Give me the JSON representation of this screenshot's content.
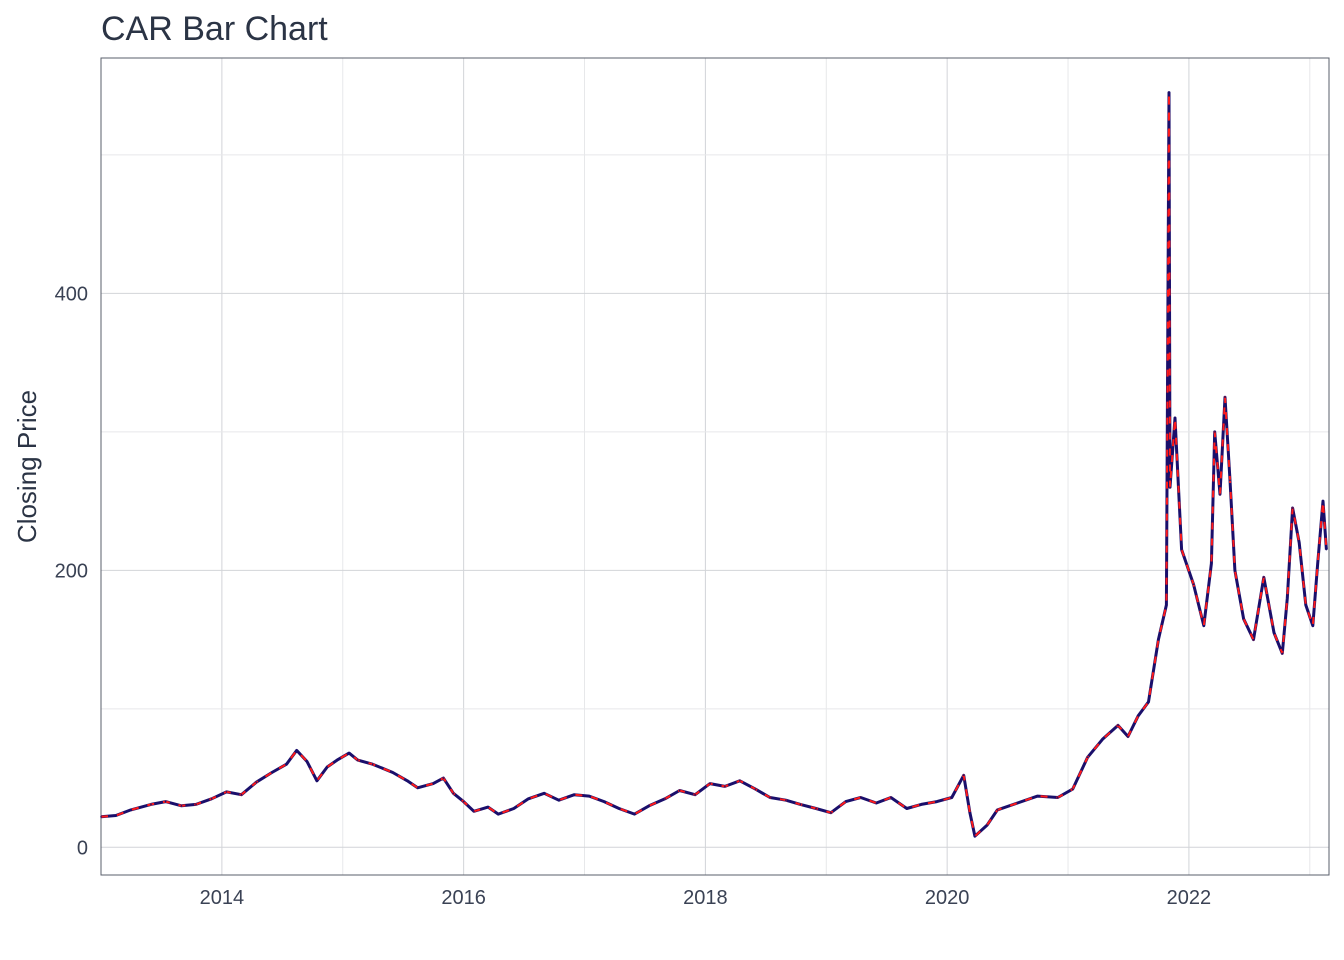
{
  "chart_data": {
    "type": "line",
    "title": "CAR Bar Chart",
    "xlabel": "",
    "ylabel": "Closing Price",
    "x_ticks": [
      "2014",
      "2016",
      "2018",
      "2020",
      "2022"
    ],
    "y_ticks": [
      "0",
      "200",
      "400"
    ],
    "xlim": [
      "2013-01-01",
      "2023-02-28"
    ],
    "ylim": [
      -20,
      570
    ],
    "grid": true,
    "series_colors": [
      "#1a0f6b",
      "#ff1a1a"
    ],
    "points": [
      [
        "2013-01-01",
        22
      ],
      [
        "2013-02-15",
        23
      ],
      [
        "2013-04-01",
        27
      ],
      [
        "2013-06-01",
        31
      ],
      [
        "2013-07-15",
        33
      ],
      [
        "2013-09-01",
        30
      ],
      [
        "2013-10-15",
        31
      ],
      [
        "2013-12-01",
        35
      ],
      [
        "2014-01-15",
        40
      ],
      [
        "2014-03-01",
        38
      ],
      [
        "2014-04-15",
        47
      ],
      [
        "2014-06-01",
        54
      ],
      [
        "2014-07-15",
        60
      ],
      [
        "2014-08-15",
        70
      ],
      [
        "2014-09-15",
        62
      ],
      [
        "2014-10-15",
        48
      ],
      [
        "2014-11-15",
        58
      ],
      [
        "2014-12-15",
        63
      ],
      [
        "2015-01-20",
        68
      ],
      [
        "2015-02-15",
        63
      ],
      [
        "2015-04-01",
        60
      ],
      [
        "2015-06-01",
        54
      ],
      [
        "2015-07-15",
        48
      ],
      [
        "2015-08-15",
        43
      ],
      [
        "2015-10-01",
        46
      ],
      [
        "2015-11-01",
        50
      ],
      [
        "2015-12-01",
        39
      ],
      [
        "2016-01-01",
        33
      ],
      [
        "2016-02-01",
        26
      ],
      [
        "2016-03-15",
        29
      ],
      [
        "2016-04-15",
        24
      ],
      [
        "2016-06-01",
        28
      ],
      [
        "2016-07-15",
        35
      ],
      [
        "2016-09-01",
        39
      ],
      [
        "2016-10-15",
        34
      ],
      [
        "2016-12-01",
        38
      ],
      [
        "2017-01-15",
        37
      ],
      [
        "2017-03-01",
        33
      ],
      [
        "2017-04-15",
        28
      ],
      [
        "2017-06-01",
        24
      ],
      [
        "2017-07-15",
        30
      ],
      [
        "2017-09-01",
        35
      ],
      [
        "2017-10-15",
        41
      ],
      [
        "2017-12-01",
        38
      ],
      [
        "2018-01-15",
        46
      ],
      [
        "2018-03-01",
        44
      ],
      [
        "2018-04-15",
        48
      ],
      [
        "2018-06-01",
        42
      ],
      [
        "2018-07-15",
        36
      ],
      [
        "2018-09-01",
        34
      ],
      [
        "2018-10-15",
        31
      ],
      [
        "2018-12-01",
        28
      ],
      [
        "2019-01-15",
        25
      ],
      [
        "2019-03-01",
        33
      ],
      [
        "2019-04-15",
        36
      ],
      [
        "2019-06-01",
        32
      ],
      [
        "2019-07-15",
        36
      ],
      [
        "2019-09-01",
        28
      ],
      [
        "2019-10-15",
        31
      ],
      [
        "2019-12-01",
        33
      ],
      [
        "2020-01-15",
        36
      ],
      [
        "2020-02-20",
        52
      ],
      [
        "2020-03-10",
        25
      ],
      [
        "2020-03-25",
        8
      ],
      [
        "2020-05-01",
        16
      ],
      [
        "2020-06-01",
        27
      ],
      [
        "2020-08-01",
        32
      ],
      [
        "2020-10-01",
        37
      ],
      [
        "2020-12-01",
        36
      ],
      [
        "2021-01-15",
        42
      ],
      [
        "2021-03-01",
        65
      ],
      [
        "2021-04-15",
        78
      ],
      [
        "2021-06-01",
        88
      ],
      [
        "2021-07-01",
        80
      ],
      [
        "2021-08-01",
        95
      ],
      [
        "2021-09-01",
        105
      ],
      [
        "2021-10-01",
        150
      ],
      [
        "2021-10-25",
        175
      ],
      [
        "2021-11-02",
        545
      ],
      [
        "2021-11-05",
        260
      ],
      [
        "2021-11-20",
        310
      ],
      [
        "2021-12-10",
        215
      ],
      [
        "2022-01-15",
        190
      ],
      [
        "2022-02-15",
        160
      ],
      [
        "2022-03-10",
        205
      ],
      [
        "2022-03-20",
        300
      ],
      [
        "2022-04-05",
        255
      ],
      [
        "2022-04-20",
        325
      ],
      [
        "2022-05-05",
        265
      ],
      [
        "2022-05-20",
        200
      ],
      [
        "2022-06-15",
        165
      ],
      [
        "2022-07-15",
        150
      ],
      [
        "2022-08-15",
        195
      ],
      [
        "2022-09-15",
        155
      ],
      [
        "2022-10-10",
        140
      ],
      [
        "2022-10-25",
        180
      ],
      [
        "2022-11-10",
        245
      ],
      [
        "2022-11-30",
        220
      ],
      [
        "2022-12-20",
        175
      ],
      [
        "2023-01-10",
        160
      ],
      [
        "2023-01-25",
        205
      ],
      [
        "2023-02-10",
        250
      ],
      [
        "2023-02-20",
        215
      ]
    ]
  }
}
